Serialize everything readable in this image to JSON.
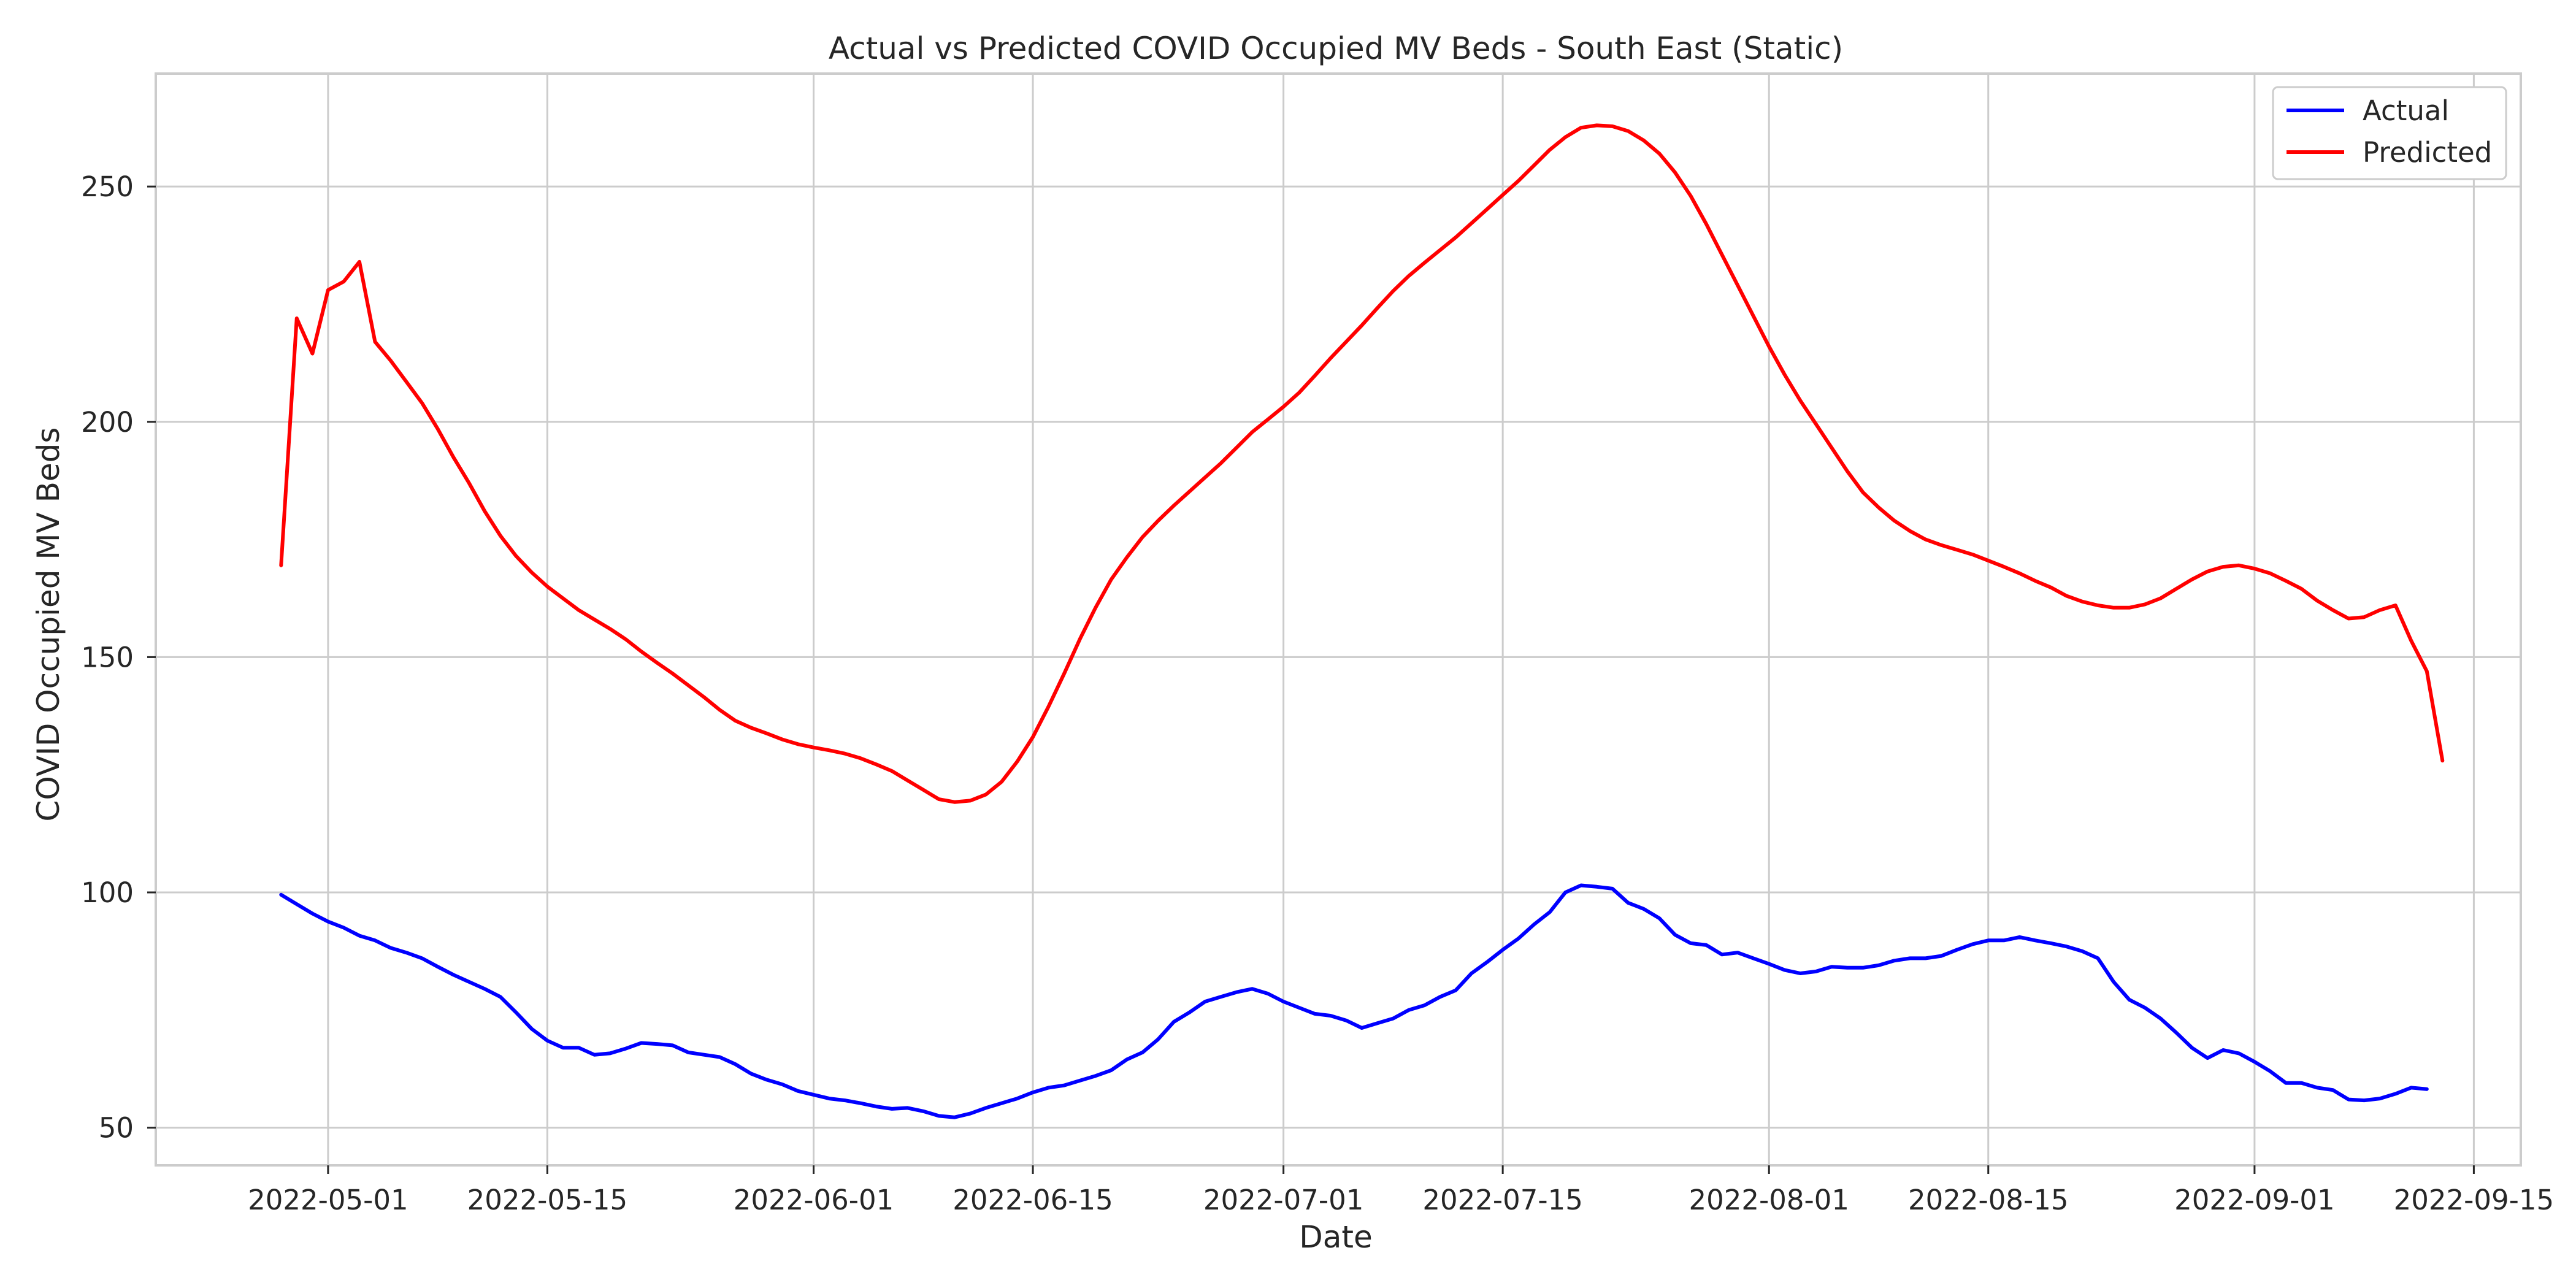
{
  "chart_data": {
    "type": "line",
    "title": "Actual vs Predicted COVID Occupied MV Beds - South East (Static)",
    "xlabel": "Date",
    "ylabel": "COVID Occupied MV Beds",
    "xlim": [
      "2022-04-20",
      "2022-09-18"
    ],
    "ylim": [
      42,
      274
    ],
    "grid": true,
    "legend_position": "top-right",
    "x_ticks": [
      "2022-05-01",
      "2022-05-15",
      "2022-06-01",
      "2022-06-15",
      "2022-07-01",
      "2022-07-15",
      "2022-08-01",
      "2022-08-15",
      "2022-09-01",
      "2022-09-15"
    ],
    "y_ticks": [
      50,
      100,
      150,
      200,
      250
    ],
    "series": [
      {
        "name": "Actual",
        "color": "#0000ff",
        "points": [
          [
            "2022-04-28",
            99.5
          ],
          [
            "2022-04-29",
            97.5
          ],
          [
            "2022-04-30",
            95.5
          ],
          [
            "2022-05-01",
            93.8
          ],
          [
            "2022-05-02",
            92.5
          ],
          [
            "2022-05-03",
            90.8
          ],
          [
            "2022-05-04",
            89.8
          ],
          [
            "2022-05-05",
            88.2
          ],
          [
            "2022-05-06",
            87.2
          ],
          [
            "2022-05-07",
            86
          ],
          [
            "2022-05-08",
            84.2
          ],
          [
            "2022-05-09",
            82.5
          ],
          [
            "2022-05-10",
            81
          ],
          [
            "2022-05-11",
            79.5
          ],
          [
            "2022-05-12",
            77.8
          ],
          [
            "2022-05-13",
            74.5
          ],
          [
            "2022-05-14",
            71
          ],
          [
            "2022-05-15",
            68.5
          ],
          [
            "2022-05-16",
            67
          ],
          [
            "2022-05-17",
            67
          ],
          [
            "2022-05-18",
            65.5
          ],
          [
            "2022-05-19",
            65.8
          ],
          [
            "2022-05-20",
            66.8
          ],
          [
            "2022-05-21",
            68
          ],
          [
            "2022-05-22",
            67.8
          ],
          [
            "2022-05-23",
            67.5
          ],
          [
            "2022-05-24",
            66
          ],
          [
            "2022-05-25",
            65.5
          ],
          [
            "2022-05-26",
            65
          ],
          [
            "2022-05-27",
            63.5
          ],
          [
            "2022-05-28",
            61.5
          ],
          [
            "2022-05-29",
            60.2
          ],
          [
            "2022-05-30",
            59.2
          ],
          [
            "2022-05-31",
            57.8
          ],
          [
            "2022-06-01",
            57
          ],
          [
            "2022-06-02",
            56.2
          ],
          [
            "2022-06-03",
            55.8
          ],
          [
            "2022-06-04",
            55.2
          ],
          [
            "2022-06-05",
            54.5
          ],
          [
            "2022-06-06",
            54
          ],
          [
            "2022-06-07",
            54.2
          ],
          [
            "2022-06-08",
            53.5
          ],
          [
            "2022-06-09",
            52.5
          ],
          [
            "2022-06-10",
            52.2
          ],
          [
            "2022-06-11",
            53
          ],
          [
            "2022-06-12",
            54.2
          ],
          [
            "2022-06-13",
            55.2
          ],
          [
            "2022-06-14",
            56.2
          ],
          [
            "2022-06-15",
            57.5
          ],
          [
            "2022-06-16",
            58.5
          ],
          [
            "2022-06-17",
            59
          ],
          [
            "2022-06-18",
            60
          ],
          [
            "2022-06-19",
            61
          ],
          [
            "2022-06-20",
            62.2
          ],
          [
            "2022-06-21",
            64.5
          ],
          [
            "2022-06-22",
            66
          ],
          [
            "2022-06-23",
            68.8
          ],
          [
            "2022-06-24",
            72.5
          ],
          [
            "2022-06-25",
            74.5
          ],
          [
            "2022-06-26",
            76.8
          ],
          [
            "2022-06-27",
            77.8
          ],
          [
            "2022-06-28",
            78.8
          ],
          [
            "2022-06-29",
            79.5
          ],
          [
            "2022-06-30",
            78.5
          ],
          [
            "2022-07-01",
            76.8
          ],
          [
            "2022-07-02",
            75.5
          ],
          [
            "2022-07-03",
            74.2
          ],
          [
            "2022-07-04",
            73.8
          ],
          [
            "2022-07-05",
            72.8
          ],
          [
            "2022-07-06",
            71.2
          ],
          [
            "2022-07-07",
            72.2
          ],
          [
            "2022-07-08",
            73.2
          ],
          [
            "2022-07-09",
            75
          ],
          [
            "2022-07-10",
            76
          ],
          [
            "2022-07-11",
            77.8
          ],
          [
            "2022-07-12",
            79.2
          ],
          [
            "2022-07-13",
            82.8
          ],
          [
            "2022-07-14",
            85.2
          ],
          [
            "2022-07-15",
            87.8
          ],
          [
            "2022-07-16",
            90.2
          ],
          [
            "2022-07-17",
            93.2
          ],
          [
            "2022-07-18",
            95.8
          ],
          [
            "2022-07-19",
            100
          ],
          [
            "2022-07-20",
            101.5
          ],
          [
            "2022-07-21",
            101.2
          ],
          [
            "2022-07-22",
            100.8
          ],
          [
            "2022-07-23",
            97.8
          ],
          [
            "2022-07-24",
            96.5
          ],
          [
            "2022-07-25",
            94.5
          ],
          [
            "2022-07-26",
            91
          ],
          [
            "2022-07-27",
            89.2
          ],
          [
            "2022-07-28",
            88.8
          ],
          [
            "2022-07-29",
            86.8
          ],
          [
            "2022-07-30",
            87.2
          ],
          [
            "2022-07-31",
            86
          ],
          [
            "2022-08-01",
            84.8
          ],
          [
            "2022-08-02",
            83.5
          ],
          [
            "2022-08-03",
            82.8
          ],
          [
            "2022-08-04",
            83.2
          ],
          [
            "2022-08-05",
            84.2
          ],
          [
            "2022-08-06",
            84
          ],
          [
            "2022-08-07",
            84
          ],
          [
            "2022-08-08",
            84.5
          ],
          [
            "2022-08-09",
            85.5
          ],
          [
            "2022-08-10",
            86
          ],
          [
            "2022-08-11",
            86
          ],
          [
            "2022-08-12",
            86.5
          ],
          [
            "2022-08-13",
            87.8
          ],
          [
            "2022-08-14",
            89
          ],
          [
            "2022-08-15",
            89.8
          ],
          [
            "2022-08-16",
            89.8
          ],
          [
            "2022-08-17",
            90.5
          ],
          [
            "2022-08-18",
            89.8
          ],
          [
            "2022-08-19",
            89.2
          ],
          [
            "2022-08-20",
            88.5
          ],
          [
            "2022-08-21",
            87.5
          ],
          [
            "2022-08-22",
            86
          ],
          [
            "2022-08-23",
            81
          ],
          [
            "2022-08-24",
            77.2
          ],
          [
            "2022-08-25",
            75.5
          ],
          [
            "2022-08-26",
            73.2
          ],
          [
            "2022-08-27",
            70.2
          ],
          [
            "2022-08-28",
            67
          ],
          [
            "2022-08-29",
            64.8
          ],
          [
            "2022-08-30",
            66.5
          ],
          [
            "2022-08-31",
            65.8
          ],
          [
            "2022-09-01",
            64
          ],
          [
            "2022-09-02",
            62
          ],
          [
            "2022-09-03",
            59.5
          ],
          [
            "2022-09-04",
            59.5
          ],
          [
            "2022-09-05",
            58.5
          ],
          [
            "2022-09-06",
            58
          ],
          [
            "2022-09-07",
            56
          ],
          [
            "2022-09-08",
            55.8
          ],
          [
            "2022-09-09",
            56.2
          ],
          [
            "2022-09-10",
            57.2
          ],
          [
            "2022-09-11",
            58.5
          ],
          [
            "2022-09-12",
            58.2
          ]
        ]
      },
      {
        "name": "Predicted",
        "color": "#ff0000",
        "points": [
          [
            "2022-04-28",
            169.5
          ],
          [
            "2022-04-29",
            222
          ],
          [
            "2022-04-30",
            214.5
          ],
          [
            "2022-05-01",
            228
          ],
          [
            "2022-05-02",
            229.8
          ],
          [
            "2022-05-03",
            234
          ],
          [
            "2022-05-04",
            217
          ],
          [
            "2022-05-05",
            213
          ],
          [
            "2022-05-06",
            208.5
          ],
          [
            "2022-05-07",
            204
          ],
          [
            "2022-05-08",
            198.5
          ],
          [
            "2022-05-09",
            192.5
          ],
          [
            "2022-05-10",
            187
          ],
          [
            "2022-05-11",
            181
          ],
          [
            "2022-05-12",
            175.8
          ],
          [
            "2022-05-13",
            171.5
          ],
          [
            "2022-05-14",
            168
          ],
          [
            "2022-05-15",
            165
          ],
          [
            "2022-05-16",
            162.5
          ],
          [
            "2022-05-17",
            160
          ],
          [
            "2022-05-18",
            158
          ],
          [
            "2022-05-19",
            156
          ],
          [
            "2022-05-20",
            153.8
          ],
          [
            "2022-05-21",
            151.2
          ],
          [
            "2022-05-22",
            148.8
          ],
          [
            "2022-05-23",
            146.5
          ],
          [
            "2022-05-24",
            144
          ],
          [
            "2022-05-25",
            141.5
          ],
          [
            "2022-05-26",
            138.8
          ],
          [
            "2022-05-27",
            136.5
          ],
          [
            "2022-05-28",
            135
          ],
          [
            "2022-05-29",
            133.8
          ],
          [
            "2022-05-30",
            132.5
          ],
          [
            "2022-05-31",
            131.5
          ],
          [
            "2022-06-01",
            130.8
          ],
          [
            "2022-06-02",
            130.2
          ],
          [
            "2022-06-03",
            129.5
          ],
          [
            "2022-06-04",
            128.5
          ],
          [
            "2022-06-05",
            127.2
          ],
          [
            "2022-06-06",
            125.8
          ],
          [
            "2022-06-07",
            123.8
          ],
          [
            "2022-06-08",
            121.8
          ],
          [
            "2022-06-09",
            119.8
          ],
          [
            "2022-06-10",
            119.2
          ],
          [
            "2022-06-11",
            119.5
          ],
          [
            "2022-06-12",
            120.8
          ],
          [
            "2022-06-13",
            123.5
          ],
          [
            "2022-06-14",
            127.8
          ],
          [
            "2022-06-15",
            133
          ],
          [
            "2022-06-16",
            139.5
          ],
          [
            "2022-06-17",
            146.5
          ],
          [
            "2022-06-18",
            153.8
          ],
          [
            "2022-06-19",
            160.5
          ],
          [
            "2022-06-20",
            166.5
          ],
          [
            "2022-06-21",
            171.2
          ],
          [
            "2022-06-22",
            175.5
          ],
          [
            "2022-06-23",
            179
          ],
          [
            "2022-06-24",
            182.2
          ],
          [
            "2022-06-25",
            185.2
          ],
          [
            "2022-06-26",
            188.2
          ],
          [
            "2022-06-27",
            191.2
          ],
          [
            "2022-06-28",
            194.5
          ],
          [
            "2022-06-29",
            197.8
          ],
          [
            "2022-06-30",
            200.5
          ],
          [
            "2022-07-01",
            203.2
          ],
          [
            "2022-07-02",
            206.2
          ],
          [
            "2022-07-03",
            209.8
          ],
          [
            "2022-07-04",
            213.5
          ],
          [
            "2022-07-05",
            217
          ],
          [
            "2022-07-06",
            220.5
          ],
          [
            "2022-07-07",
            224.2
          ],
          [
            "2022-07-08",
            227.8
          ],
          [
            "2022-07-09",
            231
          ],
          [
            "2022-07-10",
            233.8
          ],
          [
            "2022-07-11",
            236.5
          ],
          [
            "2022-07-12",
            239.2
          ],
          [
            "2022-07-13",
            242.2
          ],
          [
            "2022-07-14",
            245.2
          ],
          [
            "2022-07-15",
            248.2
          ],
          [
            "2022-07-16",
            251.2
          ],
          [
            "2022-07-17",
            254.5
          ],
          [
            "2022-07-18",
            257.8
          ],
          [
            "2022-07-19",
            260.5
          ],
          [
            "2022-07-20",
            262.5
          ],
          [
            "2022-07-21",
            263
          ],
          [
            "2022-07-22",
            262.8
          ],
          [
            "2022-07-23",
            261.8
          ],
          [
            "2022-07-24",
            259.8
          ],
          [
            "2022-07-25",
            257
          ],
          [
            "2022-07-26",
            253
          ],
          [
            "2022-07-27",
            248
          ],
          [
            "2022-07-28",
            242
          ],
          [
            "2022-07-29",
            235.5
          ],
          [
            "2022-07-30",
            229
          ],
          [
            "2022-07-31",
            222.5
          ],
          [
            "2022-08-01",
            216
          ],
          [
            "2022-08-02",
            210
          ],
          [
            "2022-08-03",
            204.5
          ],
          [
            "2022-08-04",
            199.5
          ],
          [
            "2022-08-05",
            194.5
          ],
          [
            "2022-08-06",
            189.5
          ],
          [
            "2022-08-07",
            185
          ],
          [
            "2022-08-08",
            181.8
          ],
          [
            "2022-08-09",
            179
          ],
          [
            "2022-08-10",
            176.8
          ],
          [
            "2022-08-11",
            175
          ],
          [
            "2022-08-12",
            173.8
          ],
          [
            "2022-08-13",
            172.8
          ],
          [
            "2022-08-14",
            171.8
          ],
          [
            "2022-08-15",
            170.5
          ],
          [
            "2022-08-16",
            169.2
          ],
          [
            "2022-08-17",
            167.8
          ],
          [
            "2022-08-18",
            166.2
          ],
          [
            "2022-08-19",
            164.8
          ],
          [
            "2022-08-20",
            163
          ],
          [
            "2022-08-21",
            161.8
          ],
          [
            "2022-08-22",
            161
          ],
          [
            "2022-08-23",
            160.5
          ],
          [
            "2022-08-24",
            160.5
          ],
          [
            "2022-08-25",
            161.2
          ],
          [
            "2022-08-26",
            162.5
          ],
          [
            "2022-08-27",
            164.5
          ],
          [
            "2022-08-28",
            166.5
          ],
          [
            "2022-08-29",
            168.2
          ],
          [
            "2022-08-30",
            169.2
          ],
          [
            "2022-08-31",
            169.5
          ],
          [
            "2022-09-01",
            168.8
          ],
          [
            "2022-09-02",
            167.8
          ],
          [
            "2022-09-03",
            166.2
          ],
          [
            "2022-09-04",
            164.5
          ],
          [
            "2022-09-05",
            162
          ],
          [
            "2022-09-06",
            160
          ],
          [
            "2022-09-07",
            158.2
          ],
          [
            "2022-09-08",
            158.5
          ],
          [
            "2022-09-09",
            160
          ],
          [
            "2022-09-10",
            161
          ],
          [
            "2022-09-11",
            153.5
          ],
          [
            "2022-09-12",
            147
          ],
          [
            "2022-09-13",
            128
          ]
        ]
      }
    ]
  }
}
